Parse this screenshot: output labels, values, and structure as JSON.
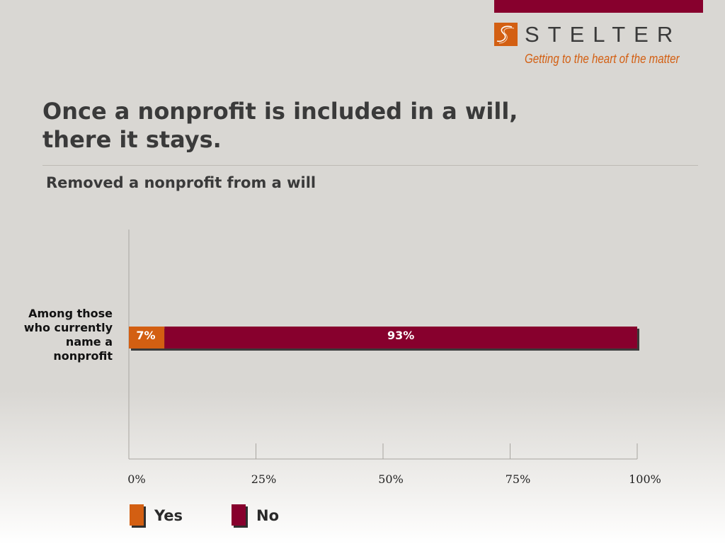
{
  "brand": {
    "name": "STELTER",
    "tagline": "Getting to the heart of the matter",
    "primary_color": "#87002d",
    "accent_color": "#d35f12"
  },
  "slide": {
    "title_line1": "Once a nonprofit is included in a will,",
    "title_line2": "there it stays."
  },
  "chart_data": {
    "type": "bar",
    "orientation": "horizontal",
    "stacked": true,
    "title": "Removed a nonprofit from a will",
    "categories": [
      "Among those who currently name a nonprofit"
    ],
    "series": [
      {
        "name": "Yes",
        "values": [
          7
        ],
        "labels": [
          "7%"
        ],
        "color": "#d35f12"
      },
      {
        "name": "No",
        "values": [
          93
        ],
        "labels": [
          "93%"
        ],
        "color": "#87002d"
      }
    ],
    "x_ticks": [
      "0%",
      "25%",
      "50%",
      "75%",
      "100%"
    ],
    "xlim": [
      0,
      100
    ],
    "grid": false,
    "legend_position": "bottom-left"
  }
}
